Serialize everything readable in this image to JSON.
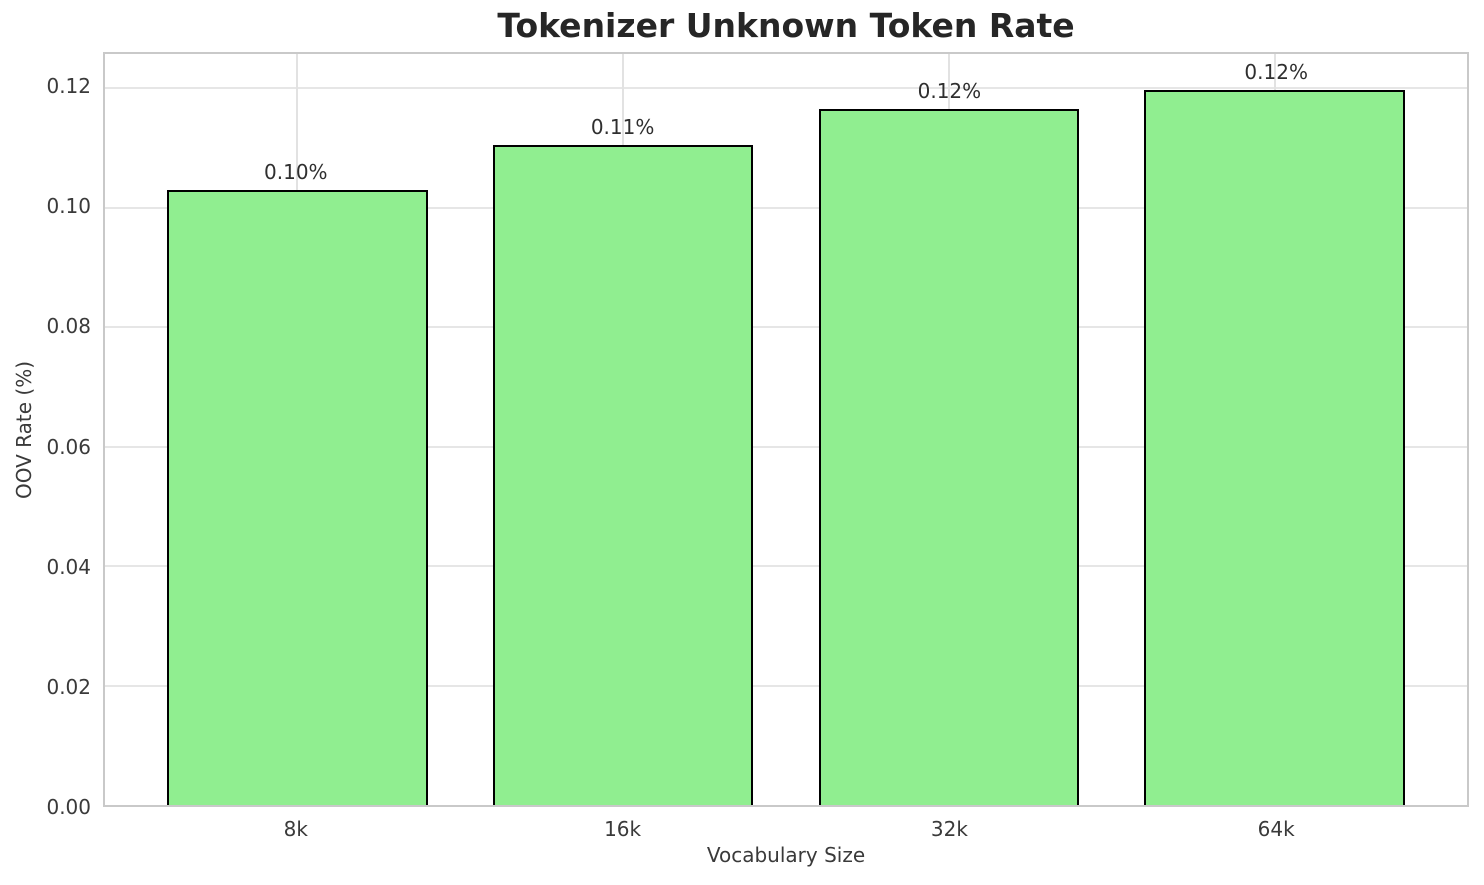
{
  "chart_data": {
    "type": "bar",
    "title": "Tokenizer Unknown Token Rate",
    "xlabel": "Vocabulary Size",
    "ylabel": "OOV Rate (%)",
    "categories": [
      "8k",
      "16k",
      "32k",
      "64k"
    ],
    "values": [
      0.103,
      0.1105,
      0.1165,
      0.1197
    ],
    "bar_labels": [
      "0.10%",
      "0.11%",
      "0.12%",
      "0.12%"
    ],
    "ytick_labels": [
      "0.00",
      "0.02",
      "0.04",
      "0.06",
      "0.08",
      "0.10",
      "0.12"
    ],
    "ytick_values": [
      0,
      0.02,
      0.04,
      0.06,
      0.08,
      0.1,
      0.12
    ],
    "ylim": [
      0,
      0.1257
    ],
    "grid": true,
    "legend": "none",
    "bar_color": "#90EE90",
    "bar_edge_color": "#000000",
    "grid_color": "#e6e6e6",
    "spine_color": "#c9c9c9"
  }
}
